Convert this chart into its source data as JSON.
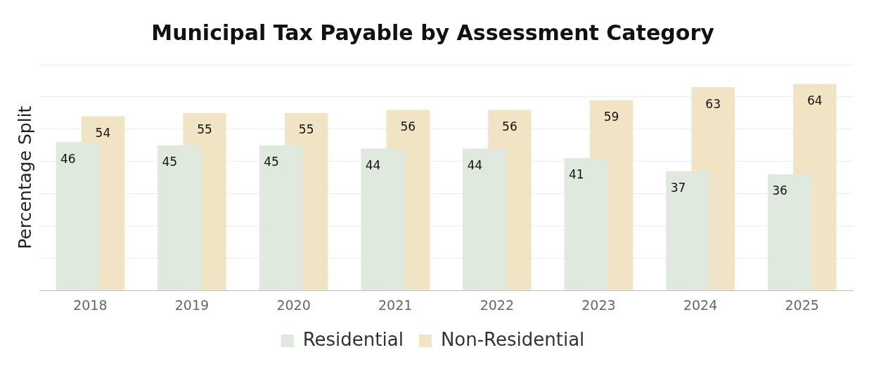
{
  "chart_data": {
    "type": "bar",
    "title": "Municipal Tax Payable by Assessment Category",
    "ylabel": "Percentage Split",
    "categories": [
      "2018",
      "2019",
      "2020",
      "2021",
      "2022",
      "2023",
      "2024",
      "2025"
    ],
    "series": [
      {
        "name": "Residential",
        "color": "#dfe9dd",
        "values": [
          46,
          45,
          45,
          44,
          44,
          41,
          37,
          36
        ]
      },
      {
        "name": "Non-Residential",
        "color": "#f0e4c4",
        "values": [
          54,
          55,
          55,
          56,
          56,
          59,
          63,
          64
        ]
      }
    ],
    "ylim": [
      0,
      70
    ],
    "yticks": [
      0,
      10,
      20,
      30,
      40,
      50,
      60,
      70
    ],
    "tick_labels": "x",
    "grid": "y",
    "legend": "bottom",
    "data_labels": true
  }
}
